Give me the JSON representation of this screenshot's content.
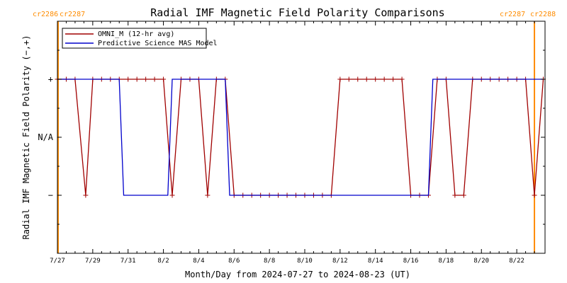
{
  "chart_data": {
    "type": "line",
    "title": "Radial IMF Magnetic Field Polarity Comparisons",
    "xlabel": "Month/Day from 2024-07-27 to 2024-08-23 (UT)",
    "ylabel": "Radial IMF Magnetic Field Polarity (−,+)",
    "xlim": [
      0,
      27.6
    ],
    "ylim": [
      -2,
      2
    ],
    "x_ticks": [
      {
        "x": 0,
        "label": "7/27"
      },
      {
        "x": 2,
        "label": "7/29"
      },
      {
        "x": 4,
        "label": "7/31"
      },
      {
        "x": 6,
        "label": "8/2"
      },
      {
        "x": 8,
        "label": "8/4"
      },
      {
        "x": 10,
        "label": "8/6"
      },
      {
        "x": 12,
        "label": "8/8"
      },
      {
        "x": 14,
        "label": "8/10"
      },
      {
        "x": 16,
        "label": "8/12"
      },
      {
        "x": 18,
        "label": "8/14"
      },
      {
        "x": 20,
        "label": "8/16"
      },
      {
        "x": 22,
        "label": "8/18"
      },
      {
        "x": 24,
        "label": "8/20"
      },
      {
        "x": 26,
        "label": "8/22"
      }
    ],
    "y_ticks": [
      {
        "y": 1,
        "label": "+"
      },
      {
        "y": 0,
        "label": "N/A"
      },
      {
        "y": -1,
        "label": "−"
      }
    ],
    "carrington_markers": [
      {
        "x": 0.0,
        "left_label": "cr2286",
        "right_label": "cr2287",
        "color": "#ff8c00"
      },
      {
        "x": 27.0,
        "left_label": "cr2287",
        "right_label": "cr2288",
        "color": "#ff8c00"
      }
    ],
    "legend": {
      "placement": "top-left"
    },
    "series": [
      {
        "name": "OMNI_M (12-hr avg)",
        "color": "#a00000",
        "markers": "plus",
        "points": [
          [
            0.0,
            1
          ],
          [
            0.5,
            1
          ],
          [
            1.0,
            1
          ],
          [
            1.6,
            -1
          ],
          [
            2.0,
            1
          ],
          [
            2.5,
            1
          ],
          [
            3.0,
            1
          ],
          [
            3.5,
            1
          ],
          [
            4.0,
            1
          ],
          [
            4.5,
            1
          ],
          [
            5.0,
            1
          ],
          [
            5.5,
            1
          ],
          [
            6.0,
            1
          ],
          [
            6.5,
            -1
          ],
          [
            7.0,
            1
          ],
          [
            7.5,
            1
          ],
          [
            8.0,
            1
          ],
          [
            8.5,
            -1
          ],
          [
            9.0,
            1
          ],
          [
            9.5,
            1
          ],
          [
            10.0,
            -1
          ],
          [
            10.5,
            -1
          ],
          [
            11.0,
            -1
          ],
          [
            11.5,
            -1
          ],
          [
            12.0,
            -1
          ],
          [
            12.5,
            -1
          ],
          [
            13.0,
            -1
          ],
          [
            13.5,
            -1
          ],
          [
            14.0,
            -1
          ],
          [
            14.5,
            -1
          ],
          [
            15.0,
            -1
          ],
          [
            15.5,
            -1
          ],
          [
            16.0,
            1
          ],
          [
            16.5,
            1
          ],
          [
            17.0,
            1
          ],
          [
            17.5,
            1
          ],
          [
            18.0,
            1
          ],
          [
            18.5,
            1
          ],
          [
            19.0,
            1
          ],
          [
            19.5,
            1
          ],
          [
            20.0,
            -1
          ],
          [
            20.5,
            -1
          ],
          [
            21.0,
            -1
          ],
          [
            21.5,
            1
          ],
          [
            22.0,
            1
          ],
          [
            22.5,
            -1
          ],
          [
            23.0,
            -1
          ],
          [
            23.5,
            1
          ],
          [
            24.0,
            1
          ],
          [
            24.5,
            1
          ],
          [
            25.0,
            1
          ],
          [
            25.5,
            1
          ],
          [
            26.0,
            1
          ],
          [
            26.5,
            1
          ],
          [
            27.0,
            -1
          ],
          [
            27.5,
            1
          ]
        ]
      },
      {
        "name": "Predictive Science MAS Model",
        "color": "#0000cc",
        "markers": "none",
        "points": [
          [
            0.0,
            1
          ],
          [
            3.5,
            1
          ],
          [
            3.75,
            -1
          ],
          [
            6.25,
            -1
          ],
          [
            6.5,
            1
          ],
          [
            9.5,
            1
          ],
          [
            9.75,
            -1
          ],
          [
            21.0,
            -1
          ],
          [
            21.25,
            1
          ],
          [
            27.5,
            1
          ]
        ]
      }
    ]
  }
}
